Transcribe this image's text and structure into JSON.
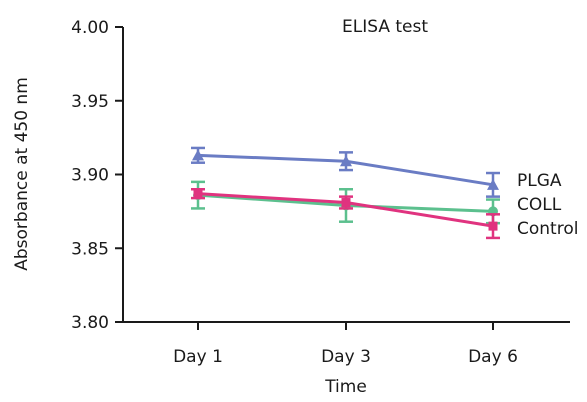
{
  "chart_data": {
    "type": "line",
    "title": "ELISA test",
    "xlabel": "Time",
    "ylabel": "Absorbance at 450 nm",
    "categories": [
      "Day 1",
      "Day 3",
      "Day 6"
    ],
    "ylim": [
      3.8,
      4.0
    ],
    "yticks": [
      "3.80",
      "3.85",
      "3.90",
      "3.95",
      "4.00"
    ],
    "grid": false,
    "legend": "inline-right",
    "series": [
      {
        "name": "PLGA",
        "marker": "triangle",
        "color": "#6a7cc4",
        "values": [
          3.913,
          3.909,
          3.893
        ],
        "errors": [
          0.005,
          0.006,
          0.008
        ]
      },
      {
        "name": "COLL",
        "marker": "circle",
        "color": "#5cc08e",
        "values": [
          3.886,
          3.879,
          3.875
        ],
        "errors": [
          0.009,
          0.011,
          0.008
        ]
      },
      {
        "name": "Control",
        "marker": "square",
        "color": "#e0337f",
        "values": [
          3.887,
          3.881,
          3.865
        ],
        "errors": [
          0.003,
          0.004,
          0.008
        ]
      }
    ]
  }
}
